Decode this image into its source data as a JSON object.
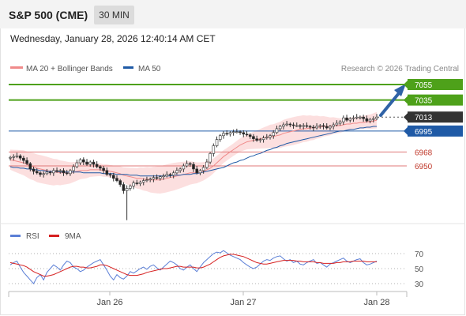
{
  "header": {
    "title": "S&P 500 (CME)",
    "timeframe": "30 MIN"
  },
  "datetime": "Wednesday, January 28, 2026 12:40:14 AM CET",
  "legend": {
    "ma20_bb": "MA 20 + Bollinger Bands",
    "ma50": "MA 50",
    "copyright": "Research © 2026 Trading Central"
  },
  "rsi_legend": {
    "rsi": "RSI",
    "ma9": "9MA"
  },
  "colors": {
    "resistance": "#4ea11a",
    "support": "#e07a7a",
    "pivot": "#1f5aa6",
    "last_price": "#333333",
    "candle_up": "#3a9a2a",
    "candle_down": "#c0392b",
    "ma20": "#f08a8a",
    "bollinger_fill": "#fbd9d9",
    "ma50": "#1f5aa6",
    "rsi": "#5b7fd6",
    "rsi_ma": "#d62020",
    "arrow": "#2f62a6"
  },
  "chart_data": [
    {
      "type": "candlestick",
      "title": "S&P 500 (CME)",
      "xticks": [
        "Jan 26",
        "Jan 27",
        "Jan 28"
      ],
      "ylim": [
        6850,
        7070
      ],
      "levels": [
        {
          "label": "7055",
          "value": 7055,
          "kind": "resistance"
        },
        {
          "label": "7035",
          "value": 7035,
          "kind": "resistance"
        },
        {
          "label": "7013",
          "value": 7013,
          "kind": "last"
        },
        {
          "label": "6995",
          "value": 6995,
          "kind": "pivot"
        },
        {
          "label": "6968",
          "value": 6968,
          "kind": "support"
        },
        {
          "label": "6950",
          "value": 6950,
          "kind": "support"
        }
      ],
      "close": [
        6961,
        6962,
        6963,
        6960,
        6957,
        6953,
        6946,
        6943,
        6941,
        6939,
        6940,
        6942,
        6941,
        6944,
        6943,
        6944,
        6941,
        6940,
        6944,
        6949,
        6954,
        6958,
        6955,
        6952,
        6955,
        6952,
        6949,
        6947,
        6944,
        6939,
        6938,
        6934,
        6931,
        6926,
        6918,
        6921,
        6924,
        6928,
        6927,
        6929,
        6931,
        6932,
        6933,
        6935,
        6934,
        6936,
        6937,
        6939,
        6938,
        6941,
        6944,
        6946,
        6950,
        6953,
        6952,
        6946,
        6941,
        6944,
        6948,
        6955,
        6966,
        6976,
        6984,
        6989,
        6992,
        6991,
        6993,
        6994,
        6994,
        6993,
        6991,
        6990,
        6988,
        6985,
        6983,
        6984,
        6986,
        6987,
        6989,
        6993,
        6998,
        7001,
        7003,
        7004,
        7003,
        7002,
        7002,
        7001,
        7002,
        7001,
        7000,
        6999,
        7001,
        7002,
        7001,
        6999,
        7001,
        7003,
        7005,
        7007,
        7012,
        7009,
        7011,
        7012,
        7013,
        7013,
        7011,
        7008,
        7010,
        7011,
        7013
      ],
      "ma20": [
        6958,
        6957,
        6956,
        6955,
        6954,
        6952,
        6950,
        6949,
        6947,
        6946,
        6945,
        6944,
        6943,
        6942,
        6942,
        6941,
        6941,
        6941,
        6941,
        6942,
        6943,
        6944,
        6944,
        6944,
        6945,
        6945,
        6945,
        6945,
        6944,
        6944,
        6943,
        6942,
        6941,
        6940,
        6938,
        6937,
        6936,
        6935,
        6934,
        6934,
        6933,
        6933,
        6932,
        6932,
        6932,
        6932,
        6933,
        6934,
        6935,
        6936,
        6937,
        6938,
        6939,
        6940,
        6941,
        6941,
        6941,
        6942,
        6943,
        6945,
        6947,
        6950,
        6954,
        6958,
        6962,
        6965,
        6968,
        6971,
        6974,
        6977,
        6979,
        6981,
        6982,
        6983,
        6984,
        6985,
        6986,
        6987,
        6988,
        6988,
        6989,
        6990,
        6992,
        6993,
        6994,
        6995,
        6996,
        6997,
        6998,
        6998,
        6999,
        6999,
        7000,
        7000,
        7001,
        7001,
        7001,
        7002,
        7002,
        7002,
        7003,
        7004,
        7004,
        7005,
        7005,
        7006,
        7006,
        7007,
        7007,
        7008,
        7009
      ],
      "ma50": [
        6949,
        6948,
        6948,
        6947,
        6947,
        6946,
        6946,
        6945,
        6945,
        6944,
        6944,
        6943,
        6943,
        6943,
        6943,
        6942,
        6942,
        6942,
        6942,
        6942,
        6942,
        6942,
        6941,
        6941,
        6941,
        6941,
        6941,
        6941,
        6940,
        6940,
        6940,
        6940,
        6939,
        6939,
        6939,
        6939,
        6938,
        6938,
        6938,
        6937,
        6937,
        6937,
        6937,
        6937,
        6937,
        6937,
        6937,
        6937,
        6937,
        6938,
        6938,
        6938,
        6939,
        6939,
        6939,
        6940,
        6940,
        6941,
        6942,
        6943,
        6944,
        6945,
        6946,
        6947,
        6948,
        6950,
        6952,
        6954,
        6955,
        6957,
        6958,
        6960,
        6962,
        6963,
        6965,
        6966,
        6968,
        6970,
        6971,
        6973,
        6974,
        6976,
        6977,
        6979,
        6980,
        6981,
        6982,
        6983,
        6984,
        6985,
        6986,
        6987,
        6988,
        6989,
        6990,
        6991,
        6992,
        6993,
        6994,
        6995,
        6995,
        6996,
        6997,
        6997,
        6998,
        6999,
        6999,
        7000,
        7000,
        7001,
        7001
      ],
      "bb_width": 13
    },
    {
      "type": "line",
      "title": "RSI",
      "ylim": [
        20,
        80
      ],
      "yticks": [
        70,
        50,
        30
      ],
      "rsi": [
        55,
        58,
        60,
        52,
        45,
        40,
        35,
        30,
        38,
        42,
        35,
        45,
        50,
        55,
        52,
        48,
        55,
        60,
        58,
        52,
        50,
        46,
        48,
        52,
        55,
        58,
        60,
        62,
        55,
        48,
        40,
        35,
        42,
        38,
        36,
        40,
        46,
        44,
        47,
        50,
        52,
        49,
        53,
        55,
        51,
        48,
        52,
        56,
        60,
        58,
        55,
        50,
        48,
        52,
        55,
        50,
        46,
        52,
        58,
        62,
        66,
        70,
        72,
        71,
        74,
        71,
        68,
        66,
        64,
        62,
        58,
        55,
        52,
        50,
        52,
        56,
        60,
        62,
        61,
        64,
        66,
        67,
        63,
        60,
        62,
        58,
        60,
        56,
        55,
        58,
        60,
        62,
        57,
        58,
        55,
        52,
        56,
        58,
        60,
        62,
        64,
        60,
        58,
        60,
        62,
        63,
        58,
        55,
        56,
        58,
        60
      ],
      "ma9": [
        58,
        57,
        56,
        55,
        54,
        52,
        49,
        46,
        44,
        42,
        40,
        40,
        41,
        42,
        44,
        46,
        48,
        50,
        52,
        53,
        53,
        52,
        52,
        51,
        51,
        52,
        53,
        55,
        55,
        54,
        52,
        50,
        48,
        46,
        44,
        42,
        41,
        41,
        41,
        42,
        43,
        45,
        46,
        47,
        48,
        49,
        50,
        50,
        51,
        52,
        53,
        53,
        52,
        52,
        52,
        52,
        51,
        51,
        52,
        54,
        56,
        59,
        62,
        65,
        67,
        68,
        69,
        69,
        68,
        67,
        66,
        64,
        62,
        60,
        58,
        57,
        56,
        56,
        57,
        58,
        59,
        60,
        61,
        61,
        61,
        61,
        60,
        60,
        59,
        59,
        59,
        59,
        58,
        58,
        57,
        57,
        57,
        57,
        58,
        58,
        59,
        59,
        59,
        60,
        60,
        60,
        60,
        59,
        59,
        59,
        59
      ]
    }
  ]
}
